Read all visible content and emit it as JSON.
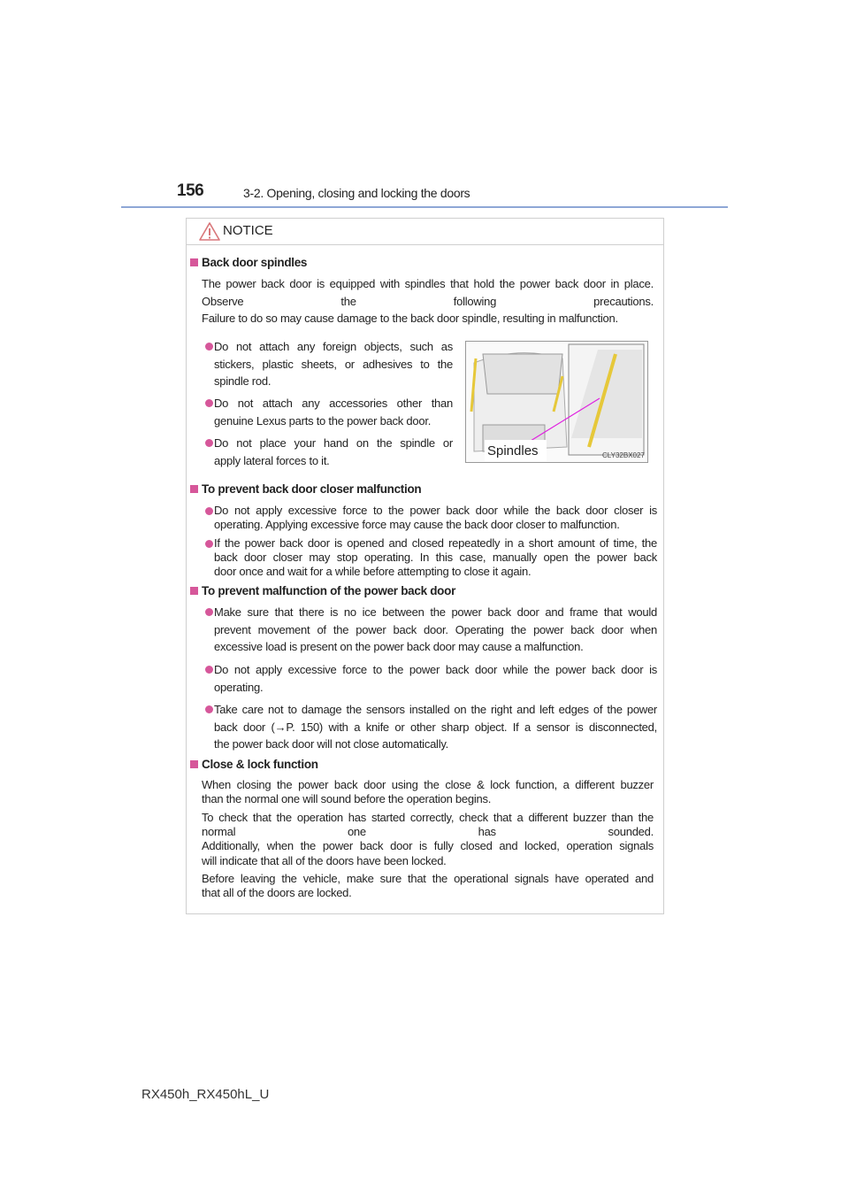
{
  "header": {
    "page_number": "156",
    "section_title": "3-2. Opening, closing and locking the doors"
  },
  "notice": {
    "title": "NOTICE",
    "icon": "warning-triangle-icon",
    "accent": "#d6579a"
  },
  "sections": [
    {
      "heading": "Back door spindles",
      "paragraphs": [
        [
          "The power back door is equipped with spindles that hold the power back door in place.",
          "Observe the following precautions.",
          "Failure to do so may cause damage to the back door spindle, resulting in malfunction."
        ]
      ],
      "bullets": [
        [
          "Do not attach any foreign objects, such as",
          "stickers, plastic sheets, or adhesives to the",
          "spindle rod."
        ],
        [
          "Do not attach any accessories other than",
          "genuine Lexus parts to the power back door."
        ],
        [
          "Do not place your hand on the spindle or",
          "apply lateral forces to it."
        ]
      ],
      "figure": {
        "label": "Spindles",
        "code": "CLY32BX027"
      }
    },
    {
      "heading": "To prevent back door closer malfunction",
      "bullets": [
        [
          "Do not apply excessive force to the power back door while the back door closer is",
          "operating. Applying excessive force may cause the back door closer to malfunction."
        ],
        [
          "If the power back door is opened and closed repeatedly in a short amount of time, the",
          "back door closer may stop operating. In this case, manually open the power back",
          "door once and wait for a while before attempting to close it again."
        ]
      ]
    },
    {
      "heading": "To prevent malfunction of the power back door",
      "bullets": [
        [
          "Make sure that there is no ice between the power back door and frame that would",
          "prevent movement of the power back door. Operating the power back door when",
          "excessive load is present on the power back door may cause a malfunction."
        ],
        [
          "Do not apply excessive force to the power back door while the power back door is",
          "operating."
        ],
        [
          "Take care not to damage the sensors installed on the right and left edges of the power",
          "back door (→P. 150) with a knife or other sharp object. If a sensor is disconnected,",
          "the power back door will not close automatically."
        ]
      ]
    },
    {
      "heading": "Close & lock function",
      "paragraphs": [
        [
          "When closing the power back door using the close & lock function, a different buzzer",
          "than the normal one will sound before the operation begins."
        ],
        [
          "To check that the operation has started correctly, check that a different buzzer than the",
          "normal one has sounded.",
          "Additionally, when the power back door is fully closed and locked, operation signals",
          "will indicate that all of the doors have been locked."
        ],
        [
          "Before leaving the vehicle, make sure that the operational signals have operated and",
          "that all of the doors are locked."
        ]
      ]
    }
  ],
  "footer": {
    "model": "RX450h_RX450hL_U"
  }
}
